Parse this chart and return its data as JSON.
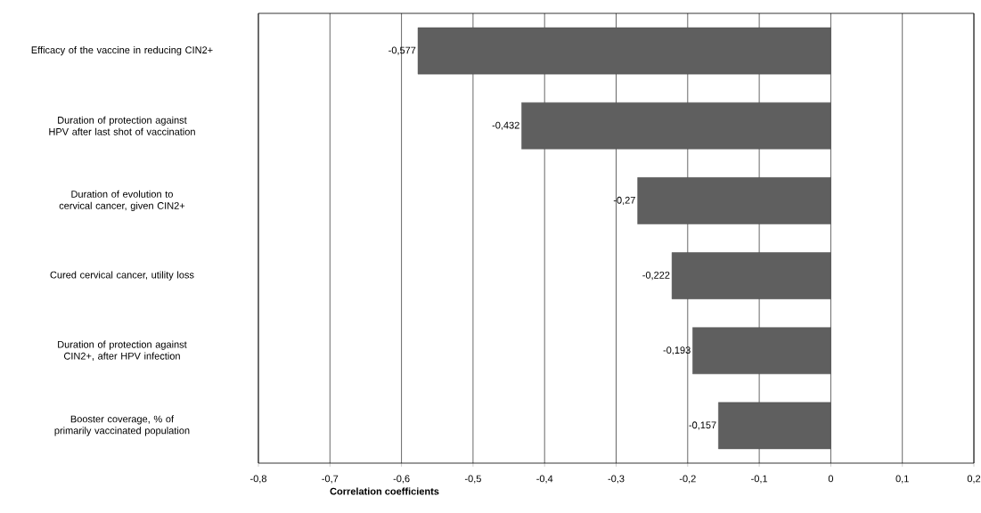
{
  "chart_data": {
    "type": "bar",
    "orientation": "horizontal",
    "xlabel": "Correlation coefficients",
    "categories": [
      "Efficacy of the vaccine in reducing CIN2+",
      "Duration of protection against HPV after last shot of vaccination",
      "Duration of evolution to cervical cancer, given CIN2+",
      "Cured cervical cancer, utility loss",
      "Duration of protection against CIN2+, after HPV infection",
      "Booster coverage, % of primarily vaccinated population"
    ],
    "values": [
      -0.577,
      -0.432,
      -0.27,
      -0.222,
      -0.193,
      -0.157
    ],
    "value_labels": [
      "-0,577",
      "-0,432",
      "-0,27",
      "-0,222",
      "-0,193",
      "-0,157"
    ],
    "color": "#5f5f5f",
    "xlim": [
      -0.8,
      0.2
    ],
    "xticks": [
      {
        "value": -0.8,
        "label": "-0,8"
      },
      {
        "value": -0.7,
        "label": "-0,7"
      },
      {
        "value": -0.6,
        "label": "-0,6"
      },
      {
        "value": -0.5,
        "label": "-0,5"
      },
      {
        "value": -0.4,
        "label": "-0,4"
      },
      {
        "value": -0.3,
        "label": "-0,3"
      },
      {
        "value": -0.2,
        "label": "-0,2"
      },
      {
        "value": -0.1,
        "label": "-0,1"
      },
      {
        "value": 0,
        "label": "0"
      },
      {
        "value": 0.1,
        "label": "0,1"
      },
      {
        "value": 0.2,
        "label": "0,2"
      }
    ],
    "grid": "x"
  }
}
